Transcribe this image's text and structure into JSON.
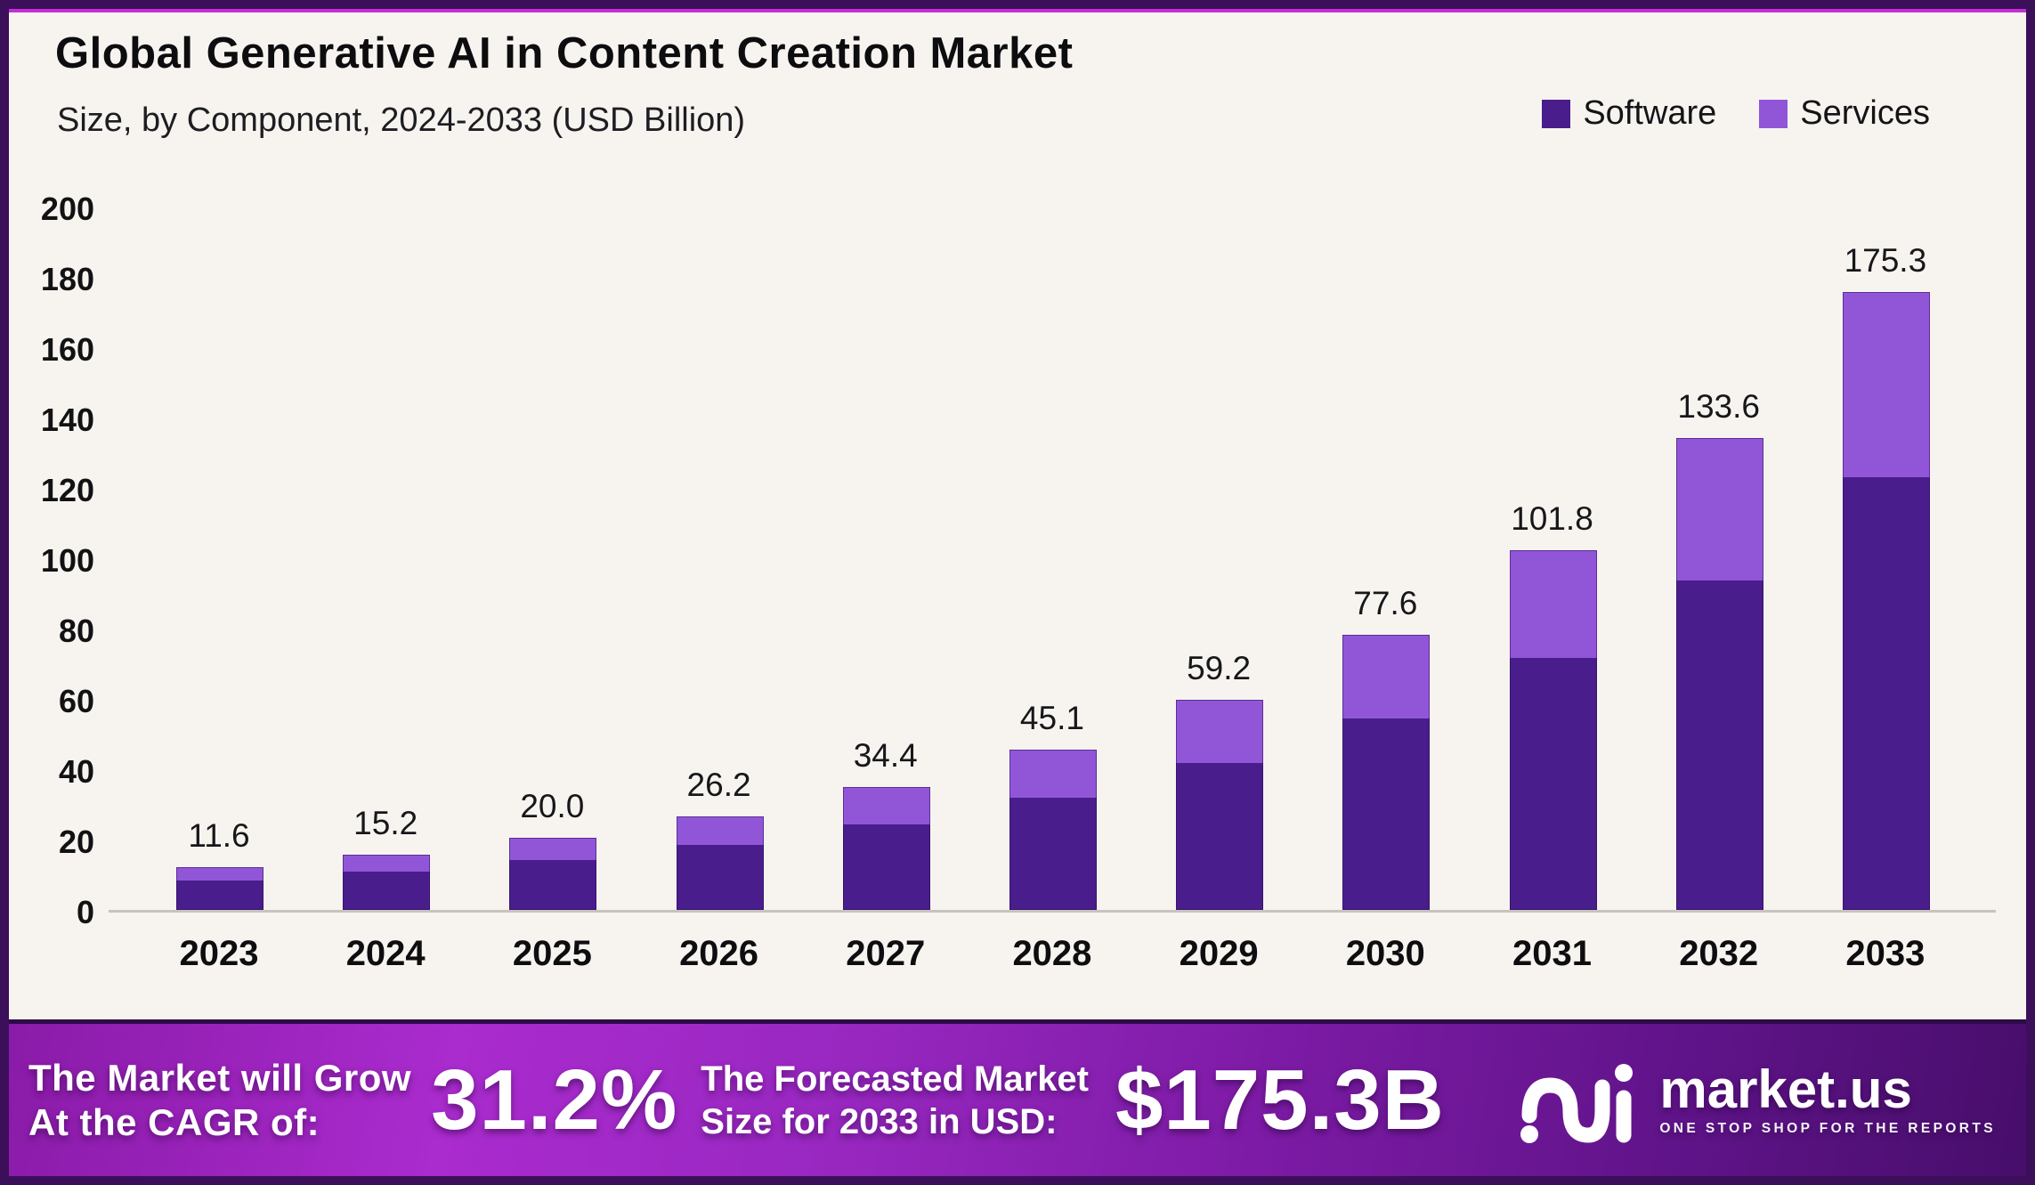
{
  "header": {
    "title": "Global Generative AI in Content Creation Market",
    "subtitle": "Size, by Component, 2024-2033 (USD Billion)"
  },
  "legend": {
    "items": [
      {
        "label": "Software",
        "color": "#4a1d8c"
      },
      {
        "label": "Services",
        "color": "#9156d8"
      }
    ]
  },
  "colors": {
    "software": "#4a1d8c",
    "services": "#9156d8",
    "background": "#f7f4f0",
    "frame_border": "#3c0f5a",
    "accent_line": "#c32fd4",
    "axis_line": "#c7c4c0"
  },
  "chart_data": {
    "type": "bar",
    "stacked": true,
    "title": "Global Generative AI in Content Creation Market",
    "subtitle": "Size, by Component, 2024-2033 (USD Billion)",
    "xlabel": "",
    "ylabel": "USD Billion",
    "ylim": [
      0,
      200
    ],
    "yticks": [
      0,
      20,
      40,
      60,
      80,
      100,
      120,
      140,
      160,
      180,
      200
    ],
    "grid": false,
    "legend_position": "top-right",
    "categories": [
      "2023",
      "2024",
      "2025",
      "2026",
      "2027",
      "2028",
      "2029",
      "2030",
      "2031",
      "2032",
      "2033"
    ],
    "series": [
      {
        "name": "Software",
        "color": "#4a1d8c",
        "values": [
          8.1,
          10.6,
          14.0,
          18.3,
          24.1,
          31.6,
          41.4,
          54.3,
          71.3,
          93.5,
          122.7
        ]
      },
      {
        "name": "Services",
        "color": "#9156d8",
        "values": [
          3.5,
          4.6,
          6.0,
          7.9,
          10.3,
          13.5,
          17.8,
          23.3,
          30.5,
          40.1,
          52.6
        ]
      }
    ],
    "totals": [
      11.6,
      15.2,
      20.0,
      26.2,
      34.4,
      45.1,
      59.2,
      77.6,
      101.8,
      133.6,
      175.3
    ],
    "total_labels": [
      "11.6",
      "15.2",
      "20.0",
      "26.2",
      "34.4",
      "45.1",
      "59.2",
      "77.6",
      "101.8",
      "133.6",
      "175.3"
    ]
  },
  "banner": {
    "cagr_label_line1": "The Market will Grow",
    "cagr_label_line2": "At the CAGR of:",
    "cagr_value": "31.2%",
    "forecast_label_line1": "The Forecasted Market",
    "forecast_label_line2": "Size for 2033 in USD:",
    "forecast_value": "$175.3B",
    "brand": "market.us",
    "brand_tagline": "ONE STOP SHOP FOR THE REPORTS"
  }
}
